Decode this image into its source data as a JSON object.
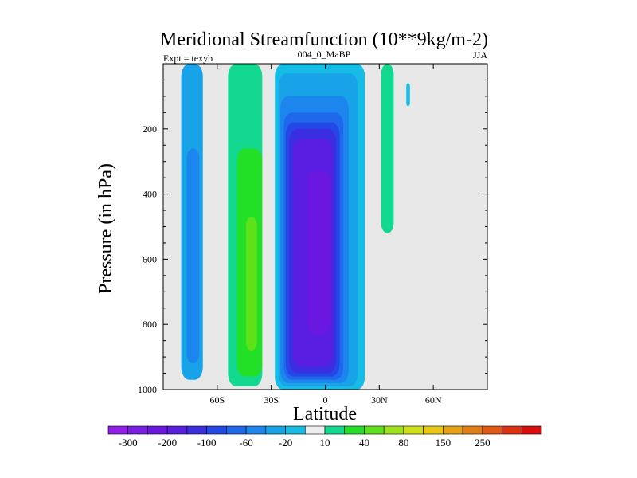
{
  "chart_data": {
    "type": "heatmap",
    "title": "Meridional Streamfunction (10**9kg/m-2)",
    "subtitle_left": "Expt = texyb",
    "subtitle_center": "004_0_MaBP",
    "subtitle_right": "JJA",
    "xlabel": "Latitude",
    "ylabel": "Pressure (in hPa)",
    "xlim": [
      -90,
      90
    ],
    "ylim": [
      1000,
      0
    ],
    "x_ticks": [
      {
        "value": -60,
        "label": "60S"
      },
      {
        "value": -30,
        "label": "30S"
      },
      {
        "value": 0,
        "label": "0"
      },
      {
        "value": 30,
        "label": "30N"
      },
      {
        "value": 60,
        "label": "60N"
      }
    ],
    "y_ticks": [
      {
        "value": 200,
        "label": "200"
      },
      {
        "value": 400,
        "label": "400"
      },
      {
        "value": 600,
        "label": "600"
      },
      {
        "value": 800,
        "label": "800"
      },
      {
        "value": 1000,
        "label": "1000"
      }
    ],
    "grid": false,
    "background_color": "#e8e8e8",
    "colorbar": {
      "colors": [
        "#8f1ee8",
        "#7a1ee6",
        "#6a18e0",
        "#5a1ee2",
        "#3a2ee0",
        "#2448e6",
        "#1f68ec",
        "#1d86ee",
        "#18a2e8",
        "#14bce6",
        "#eeeeee",
        "#12d890",
        "#22e026",
        "#5de21a",
        "#9ee21a",
        "#cfe016",
        "#e8c812",
        "#e6a212",
        "#e47e12",
        "#e25a12",
        "#e03010",
        "#d80e0e"
      ],
      "labels": [
        {
          "after_bin": 1,
          "text": "-300"
        },
        {
          "after_bin": 3,
          "text": "-200"
        },
        {
          "after_bin": 5,
          "text": "-100"
        },
        {
          "after_bin": 7,
          "text": "-60"
        },
        {
          "after_bin": 9,
          "text": "-20"
        },
        {
          "after_bin": 11,
          "text": "10"
        },
        {
          "after_bin": 13,
          "text": "40"
        },
        {
          "after_bin": 15,
          "text": "80"
        },
        {
          "after_bin": 17,
          "text": "150"
        },
        {
          "after_bin": 19,
          "text": "250"
        }
      ]
    },
    "cells": [
      {
        "name": "nh-highlat-band",
        "lat_min": -80,
        "lat_max": -68,
        "p_top": 0,
        "p_bottom": 970,
        "color": "#18a2e8"
      },
      {
        "name": "sh-highlat-inner",
        "lat_min": -77,
        "lat_max": -70,
        "p_top": 260,
        "p_bottom": 920,
        "color": "#1d86ee"
      },
      {
        "name": "ferrel-outer",
        "lat_min": -54,
        "lat_max": -35,
        "p_top": 0,
        "p_bottom": 990,
        "color": "#12d890"
      },
      {
        "name": "ferrel-mid",
        "lat_min": -49,
        "lat_max": -35,
        "p_top": 260,
        "p_bottom": 960,
        "color": "#22e026"
      },
      {
        "name": "ferrel-core",
        "lat_min": -44,
        "lat_max": -38,
        "p_top": 470,
        "p_bottom": 880,
        "color": "#5de21a"
      },
      {
        "name": "hadley-outer",
        "lat_min": -28,
        "lat_max": 22,
        "p_top": 0,
        "p_bottom": 1000,
        "color": "#14bce6"
      },
      {
        "name": "hadley-l2",
        "lat_min": -26,
        "lat_max": 18,
        "p_top": 30,
        "p_bottom": 990,
        "color": "#18a2e8"
      },
      {
        "name": "hadley-l3",
        "lat_min": -25,
        "lat_max": 13,
        "p_top": 100,
        "p_bottom": 980,
        "color": "#1d86ee"
      },
      {
        "name": "hadley-l4",
        "lat_min": -23,
        "lat_max": 10,
        "p_top": 150,
        "p_bottom": 970,
        "color": "#1f68ec"
      },
      {
        "name": "hadley-l5",
        "lat_min": -22,
        "lat_max": 8,
        "p_top": 180,
        "p_bottom": 960,
        "color": "#2448e6"
      },
      {
        "name": "hadley-l6",
        "lat_min": -20,
        "lat_max": 6,
        "p_top": 200,
        "p_bottom": 950,
        "color": "#3a2ee0"
      },
      {
        "name": "hadley-l7",
        "lat_min": -18,
        "lat_max": 4,
        "p_top": 230,
        "p_bottom": 930,
        "color": "#5a1ee2"
      },
      {
        "name": "hadley-l8",
        "lat_min": -10,
        "lat_max": 3,
        "p_top": 330,
        "p_bottom": 830,
        "color": "#6a18e0"
      },
      {
        "name": "nh-subtrop-ribbon",
        "lat_min": 31,
        "lat_max": 38,
        "p_top": 0,
        "p_bottom": 520,
        "color": "#12d890"
      },
      {
        "name": "nh-upper-sliver",
        "lat_min": 45,
        "lat_max": 47,
        "p_top": 60,
        "p_bottom": 130,
        "color": "#14bce6"
      }
    ]
  }
}
